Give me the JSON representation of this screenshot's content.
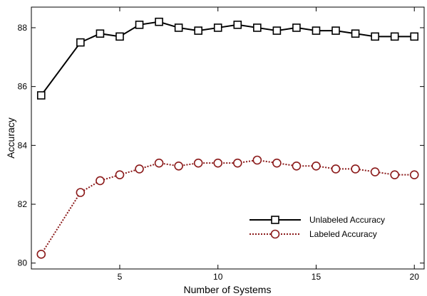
{
  "chart_data": {
    "type": "line",
    "title": "",
    "xlabel": "Number of Systems",
    "ylabel": "Accuracy",
    "xlim": [
      0.5,
      20.5
    ],
    "ylim": [
      79.8,
      88.7
    ],
    "x_ticks": [
      5,
      10,
      15,
      20
    ],
    "y_ticks": [
      80,
      82,
      84,
      86,
      88
    ],
    "grid": false,
    "legend_position": "center-right",
    "series": [
      {
        "name": "Unlabeled Accuracy",
        "color": "#000000",
        "line_style": "solid",
        "marker": "square",
        "x": [
          1,
          3,
          4,
          5,
          6,
          7,
          8,
          9,
          10,
          11,
          12,
          13,
          14,
          15,
          16,
          17,
          18,
          19,
          20
        ],
        "values": [
          85.7,
          87.5,
          87.8,
          87.7,
          88.1,
          88.2,
          88.0,
          87.9,
          88.0,
          88.1,
          88.0,
          87.9,
          88.0,
          87.9,
          87.9,
          87.8,
          87.7,
          87.7,
          87.7
        ]
      },
      {
        "name": "Labeled Accuracy",
        "color": "#8b1a1a",
        "line_style": "dotted",
        "marker": "circle",
        "x": [
          1,
          3,
          4,
          5,
          6,
          7,
          8,
          9,
          10,
          11,
          12,
          13,
          14,
          15,
          16,
          17,
          18,
          19,
          20
        ],
        "values": [
          80.3,
          82.4,
          82.8,
          83.0,
          83.2,
          83.4,
          83.3,
          83.4,
          83.4,
          83.4,
          83.5,
          83.4,
          83.3,
          83.3,
          83.2,
          83.2,
          83.1,
          83.0,
          83.0
        ]
      }
    ]
  }
}
